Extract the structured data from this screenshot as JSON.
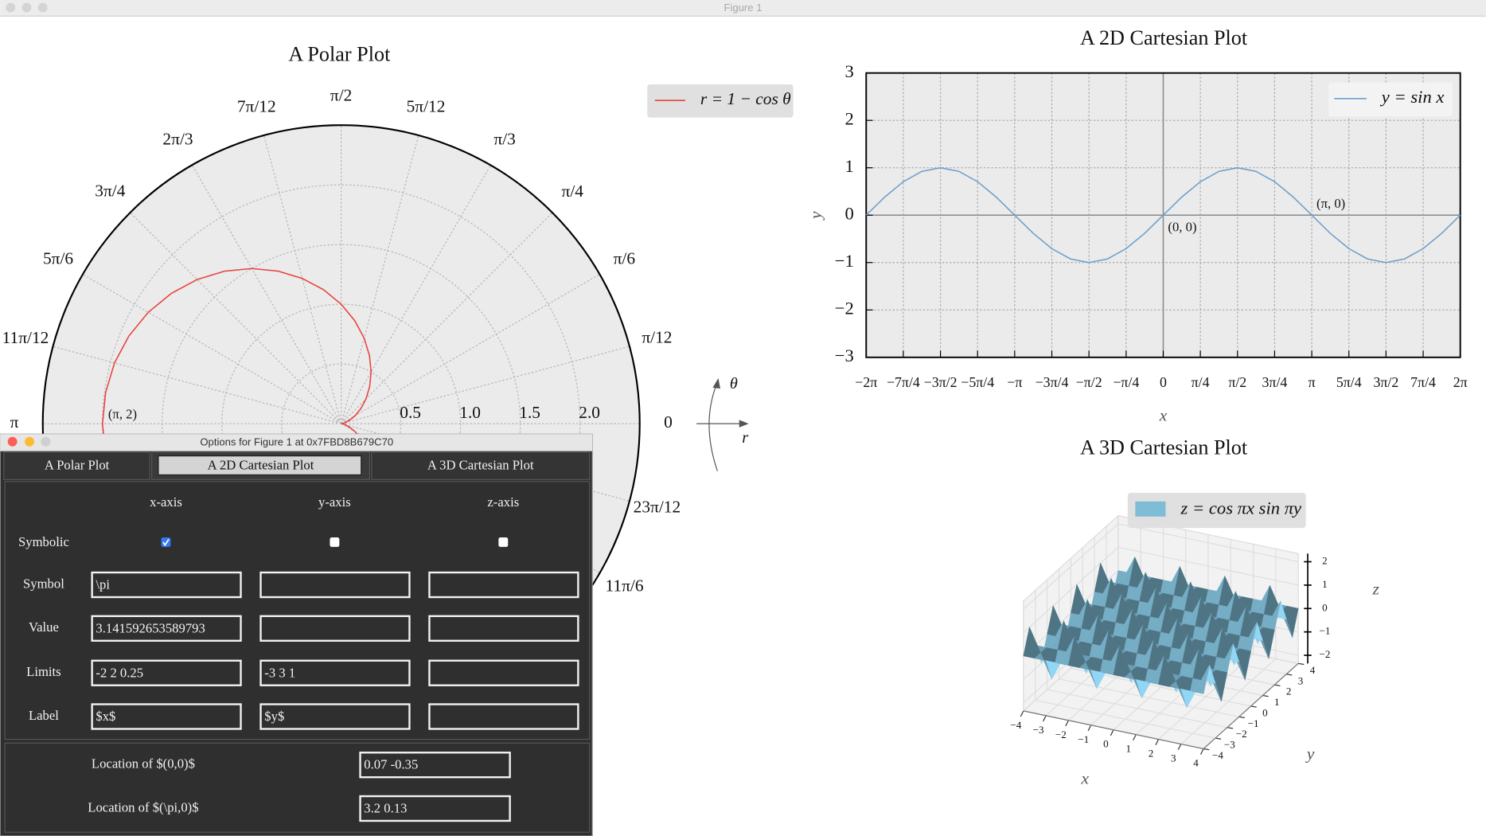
{
  "window": {
    "title": "Figure 1"
  },
  "chart_data": [
    {
      "type": "polar",
      "title": "A Polar Plot",
      "theta": [
        0,
        0.131,
        0.262,
        0.393,
        0.524,
        0.654,
        0.785,
        0.916,
        1.047,
        1.178,
        1.309,
        1.44,
        1.571,
        1.702,
        1.833,
        1.963,
        2.094,
        2.225,
        2.356,
        2.487,
        2.618,
        2.749,
        2.88,
        3.011,
        3.142,
        3.272,
        3.403,
        3.534,
        3.665,
        3.796,
        3.927,
        4.058,
        4.189,
        4.32,
        4.451,
        4.581,
        4.712,
        4.843,
        4.974,
        5.105,
        5.236,
        5.367,
        5.498,
        5.629,
        5.76,
        5.89,
        6.021,
        6.152,
        6.283
      ],
      "series": [
        {
          "name": "r = 1 − cos θ",
          "color": "#e8413c",
          "values": [
            0,
            0.009,
            0.034,
            0.076,
            0.134,
            0.207,
            0.293,
            0.391,
            0.5,
            0.617,
            0.741,
            0.869,
            1,
            1.131,
            1.259,
            1.383,
            1.5,
            1.609,
            1.707,
            1.793,
            1.866,
            1.924,
            1.966,
            1.991,
            2,
            1.991,
            1.966,
            1.924,
            1.866,
            1.793,
            1.707,
            1.609,
            1.5,
            1.383,
            1.259,
            1.131,
            1,
            0.869,
            0.741,
            0.617,
            0.5,
            0.391,
            0.293,
            0.207,
            0.134,
            0.076,
            0.034,
            0.009,
            0
          ]
        }
      ],
      "rlim": [
        0,
        2.5
      ],
      "rticks": [
        0.5,
        {
          "value": 1,
          "label": "1.0"
        },
        1.5,
        {
          "value": 2,
          "label": "2.0"
        }
      ],
      "thetaticks": [
        0,
        {
          "value": 0.262,
          "label": "π/12"
        },
        {
          "value": 0.524,
          "label": "π/6"
        },
        {
          "value": 0.785,
          "label": "π/4"
        },
        {
          "value": 1.047,
          "label": "π/3"
        },
        {
          "value": 1.309,
          "label": "5π/12"
        },
        {
          "value": 1.571,
          "label": "π/2"
        },
        {
          "value": 1.833,
          "label": "7π/12"
        },
        {
          "value": 2.094,
          "label": "2π/3"
        },
        {
          "value": 2.356,
          "label": "3π/4"
        },
        {
          "value": 2.618,
          "label": "5π/6"
        },
        {
          "value": 2.88,
          "label": "11π/12"
        },
        {
          "value": 3.142,
          "label": "π"
        },
        {
          "value": 5.76,
          "label": "11π/6"
        },
        {
          "value": 6.021,
          "label": "23π/12"
        }
      ],
      "annotations": [
        {
          "text": "(π, 2)",
          "x": 3.142,
          "y": 2
        }
      ],
      "direction_labels": {
        "theta": "θ",
        "r": "r"
      },
      "grid": true,
      "legend": "upper right"
    },
    {
      "type": "line",
      "title": "A 2D Cartesian Plot",
      "x": [
        -6.283,
        -5.89,
        -5.498,
        -5.105,
        -4.712,
        -4.32,
        -3.927,
        -3.534,
        -3.142,
        -2.749,
        -2.356,
        -1.963,
        -1.571,
        -1.178,
        -0.785,
        -0.393,
        0,
        0.393,
        0.785,
        1.178,
        1.571,
        1.963,
        2.356,
        2.749,
        3.142,
        3.534,
        3.927,
        4.32,
        4.712,
        5.105,
        5.498,
        5.89,
        6.283
      ],
      "series": [
        {
          "name": "y = sin x",
          "color": "#6b9fcb",
          "values": [
            0,
            0.383,
            0.707,
            0.924,
            1,
            0.924,
            0.707,
            0.383,
            0,
            -0.383,
            -0.707,
            -0.924,
            -1,
            -0.924,
            -0.707,
            -0.383,
            0,
            0.383,
            0.707,
            0.924,
            1,
            0.924,
            0.707,
            0.383,
            0,
            -0.383,
            -0.707,
            -0.924,
            -1,
            -0.924,
            -0.707,
            -0.383,
            0
          ]
        }
      ],
      "xlim": [
        -6.283,
        6.283
      ],
      "ylim": [
        -3,
        3
      ],
      "xticks": [
        {
          "value": -6.283,
          "label": "−2π"
        },
        {
          "value": -5.498,
          "label": "−7π/4"
        },
        {
          "value": -4.712,
          "label": "−3π/2"
        },
        {
          "value": -3.927,
          "label": "−5π/4"
        },
        {
          "value": -3.142,
          "label": "−π"
        },
        {
          "value": -2.356,
          "label": "−3π/4"
        },
        {
          "value": -1.571,
          "label": "−π/2"
        },
        {
          "value": -0.785,
          "label": "−π/4"
        },
        0,
        {
          "value": 0.785,
          "label": "π/4"
        },
        {
          "value": 1.571,
          "label": "π/2"
        },
        {
          "value": 2.356,
          "label": "3π/4"
        },
        {
          "value": 3.142,
          "label": "π"
        },
        {
          "value": 3.927,
          "label": "5π/4"
        },
        {
          "value": 4.712,
          "label": "3π/2"
        },
        {
          "value": 5.498,
          "label": "7π/4"
        },
        {
          "value": 6.283,
          "label": "2π"
        }
      ],
      "yticks": [
        {
          "value": -3,
          "label": "−3"
        },
        {
          "value": -2,
          "label": "−2"
        },
        {
          "value": -1,
          "label": "−1"
        },
        0,
        1,
        2,
        3
      ],
      "xlabel": "x",
      "ylabel": "y",
      "annotations": [
        {
          "text": "(0, 0)",
          "x": 0,
          "y": 0
        },
        {
          "text": "(π, 0)",
          "x": 3.142,
          "y": 0
        }
      ],
      "grid": true,
      "legend": "upper right"
    },
    {
      "type": "surface",
      "title": "A 3D Cartesian Plot",
      "name": "z = cos πx sin πy",
      "color": "#7fbcd6",
      "x": [
        -4,
        -3.5,
        -3,
        -2.5,
        -2,
        -1.5,
        -1,
        -0.5,
        0,
        0.5,
        1,
        1.5,
        2,
        2.5,
        3,
        3.5,
        4
      ],
      "y": [
        -4,
        -3.5,
        -3,
        -2.5,
        -2,
        -1.5,
        -1,
        -0.5,
        0,
        0.5,
        1,
        1.5,
        2,
        2.5,
        3,
        3.5,
        4
      ],
      "z": [
        [
          0,
          0,
          0,
          0,
          0,
          0,
          0,
          0,
          0,
          0,
          0,
          0,
          0,
          0,
          0,
          0,
          0
        ],
        [
          1,
          0,
          -1,
          0,
          1,
          0,
          -1,
          0,
          1,
          0,
          -1,
          0,
          1,
          0,
          -1,
          0,
          1
        ],
        [
          0,
          0,
          0,
          0,
          0,
          0,
          0,
          0,
          0,
          0,
          0,
          0,
          0,
          0,
          0,
          0,
          0
        ],
        [
          -1,
          0,
          1,
          0,
          -1,
          0,
          1,
          0,
          -1,
          0,
          1,
          0,
          -1,
          0,
          1,
          0,
          -1
        ],
        [
          0,
          0,
          0,
          0,
          0,
          0,
          0,
          0,
          0,
          0,
          0,
          0,
          0,
          0,
          0,
          0,
          0
        ],
        [
          1,
          0,
          -1,
          0,
          1,
          0,
          -1,
          0,
          1,
          0,
          -1,
          0,
          1,
          0,
          -1,
          0,
          1
        ],
        [
          0,
          0,
          0,
          0,
          0,
          0,
          0,
          0,
          0,
          0,
          0,
          0,
          0,
          0,
          0,
          0,
          0
        ],
        [
          -1,
          0,
          1,
          0,
          -1,
          0,
          1,
          0,
          -1,
          0,
          1,
          0,
          -1,
          0,
          1,
          0,
          -1
        ],
        [
          0,
          0,
          0,
          0,
          0,
          0,
          0,
          0,
          0,
          0,
          0,
          0,
          0,
          0,
          0,
          0,
          0
        ],
        [
          1,
          0,
          -1,
          0,
          1,
          0,
          -1,
          0,
          1,
          0,
          -1,
          0,
          1,
          0,
          -1,
          0,
          1
        ],
        [
          0,
          0,
          0,
          0,
          0,
          0,
          0,
          0,
          0,
          0,
          0,
          0,
          0,
          0,
          0,
          0,
          0
        ],
        [
          -1,
          0,
          1,
          0,
          -1,
          0,
          1,
          0,
          -1,
          0,
          1,
          0,
          -1,
          0,
          1,
          0,
          -1
        ],
        [
          0,
          0,
          0,
          0,
          0,
          0,
          0,
          0,
          0,
          0,
          0,
          0,
          0,
          0,
          0,
          0,
          0
        ],
        [
          1,
          0,
          -1,
          0,
          1,
          0,
          -1,
          0,
          1,
          0,
          -1,
          0,
          1,
          0,
          -1,
          0,
          1
        ],
        [
          0,
          0,
          0,
          0,
          0,
          0,
          0,
          0,
          0,
          0,
          0,
          0,
          0,
          0,
          0,
          0,
          0
        ],
        [
          -1,
          0,
          1,
          0,
          -1,
          0,
          1,
          0,
          -1,
          0,
          1,
          0,
          -1,
          0,
          1,
          0,
          -1
        ],
        [
          0,
          0,
          0,
          0,
          0,
          0,
          0,
          0,
          0,
          0,
          0,
          0,
          0,
          0,
          0,
          0,
          0
        ]
      ],
      "xlim": [
        -4,
        4
      ],
      "ylim": [
        -4,
        4
      ],
      "zlim": [
        -2.35,
        2.35
      ],
      "xticks": [
        {
          "value": -4,
          "label": "−4"
        },
        {
          "value": -3,
          "label": "−3"
        },
        {
          "value": -2,
          "label": "−2"
        },
        {
          "value": -1,
          "label": "−1"
        },
        0,
        1,
        2,
        3,
        4
      ],
      "yticks": [
        {
          "value": -4,
          "label": "−4"
        },
        {
          "value": -3,
          "label": "−3"
        },
        {
          "value": -2,
          "label": "−2"
        },
        {
          "value": -1,
          "label": "−1"
        },
        0,
        1,
        2,
        3,
        4
      ],
      "zticks": [
        {
          "value": -2,
          "label": "−2"
        },
        {
          "value": -1,
          "label": "−1"
        },
        0,
        1,
        2
      ],
      "xlabel": "x",
      "ylabel": "y",
      "zlabel": "z",
      "legend": "upper center"
    }
  ],
  "dialog": {
    "title": "Options for Figure 1 at 0x7FBD8B679C70",
    "tabs": [
      "A Polar Plot",
      "A 2D Cartesian Plot",
      "A 3D Cartesian Plot"
    ],
    "active_tab": 1,
    "columns": [
      "x-axis",
      "y-axis",
      "z-axis"
    ],
    "symbolic": {
      "label": "Symbolic",
      "checked": [
        true,
        false,
        false
      ]
    },
    "fields": [
      {
        "label": "Symbol",
        "values": [
          "\\pi",
          null,
          null
        ]
      },
      {
        "label": "Value",
        "values": [
          "3.141592653589793",
          null,
          null
        ]
      },
      {
        "label": "Limits",
        "values": [
          "-2 2 0.25",
          "-3 3 1",
          null
        ]
      },
      {
        "label": "Label",
        "values": [
          "$x$",
          "$y$",
          null
        ]
      }
    ],
    "locations": [
      {
        "label": "Location of $(0,0)$",
        "value": "0.07 -0.35"
      },
      {
        "label": "Location of $(\\pi,0)$",
        "value": "3.2 0.13"
      }
    ]
  }
}
